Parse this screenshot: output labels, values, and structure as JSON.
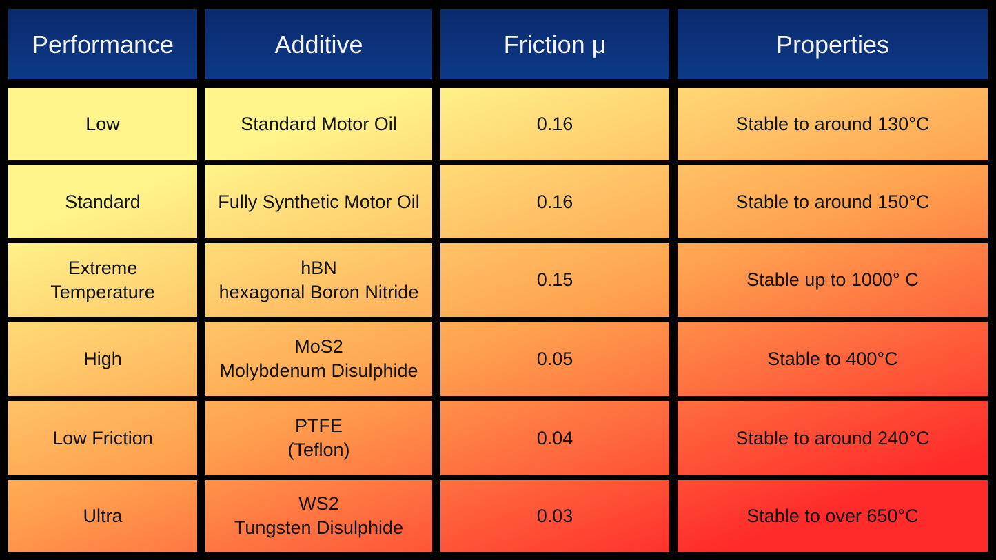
{
  "colors": {
    "header_top": "#0b2a6e",
    "header_bottom": "#0c3a86",
    "gradient_yellow": "#fff48a",
    "gradient_orange": "#ffa24f",
    "gradient_red": "#ff2a2a",
    "border": "#000000"
  },
  "headers": [
    "Performance",
    "Additive",
    "Friction μ",
    "Properties"
  ],
  "rows": [
    {
      "performance": [
        "Low"
      ],
      "additive": [
        "Standard Motor Oil"
      ],
      "friction": "0.16",
      "properties": [
        "Stable to around 130°C"
      ]
    },
    {
      "performance": [
        "Standard"
      ],
      "additive": [
        "Fully Synthetic Motor Oil"
      ],
      "friction": "0.16",
      "properties": [
        "Stable to around 150°C"
      ]
    },
    {
      "performance": [
        "Extreme",
        "Temperature"
      ],
      "additive": [
        "hBN",
        "hexagonal Boron Nitride"
      ],
      "friction": "0.15",
      "properties": [
        "Stable up to 1000° C"
      ]
    },
    {
      "performance": [
        "High"
      ],
      "additive": [
        "MoS2",
        "Molybdenum Disulphide"
      ],
      "friction": "0.05",
      "properties": [
        "Stable to 400°C"
      ]
    },
    {
      "performance": [
        "Low Friction"
      ],
      "additive": [
        "PTFE",
        "(Teflon)"
      ],
      "friction": "0.04",
      "properties": [
        "Stable to around 240°C"
      ]
    },
    {
      "performance": [
        "Ultra"
      ],
      "additive": [
        "WS2",
        "Tungsten Disulphide"
      ],
      "friction": "0.03",
      "properties": [
        "Stable to over 650°C"
      ]
    }
  ]
}
